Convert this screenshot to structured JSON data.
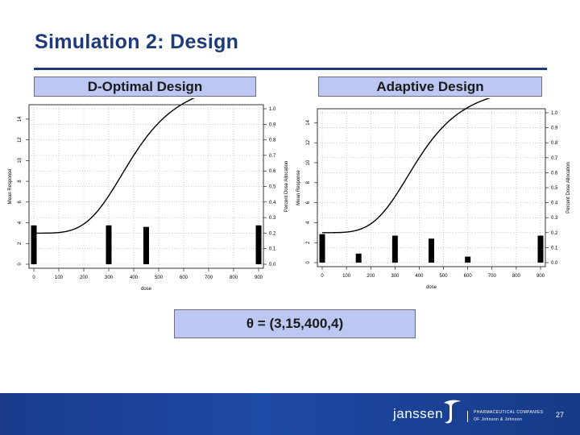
{
  "slide": {
    "title": "Simulation 2: Design",
    "param_text": "θ = (3,15,400,4)",
    "footer": {
      "logo_text": "janssen",
      "tagline_1": "PHARMACEUTICAL COMPANIES",
      "tagline_2": "OF Johnson & Johnson",
      "page_number": "27"
    }
  },
  "colors": {
    "title": "#1f3a7a",
    "box_fill": "#bcc8f2",
    "footer": "#1d4aa6",
    "bar": "#000000",
    "curve": "#000000"
  },
  "chart_data": [
    {
      "type": "bar+line",
      "title": "D-Optimal Design",
      "xlabel": "dose",
      "ylabel_left": "Mean Response",
      "ylabel_right": "Percent Dose Allocation",
      "xlim": [
        0,
        900
      ],
      "x_ticks": [
        0,
        100,
        200,
        300,
        400,
        500,
        600,
        700,
        800,
        900
      ],
      "ylim_left": [
        0,
        15
      ],
      "y_ticks_left": [
        0,
        2,
        4,
        6,
        8,
        10,
        12,
        14
      ],
      "ylim_right": [
        0,
        1
      ],
      "y_ticks_right": [
        "0.0",
        "0.1",
        "0.2",
        "0.3",
        "0.4",
        "0.5",
        "0.6",
        "0.7",
        "0.8",
        "0.9",
        "1.0"
      ],
      "grid": true,
      "curve": {
        "e0": 3,
        "emax": 15,
        "ed50": 400,
        "hill": 4
      },
      "bars": [
        {
          "dose": 0,
          "allocation": 0.25
        },
        {
          "dose": 300,
          "allocation": 0.25
        },
        {
          "dose": 450,
          "allocation": 0.24
        },
        {
          "dose": 900,
          "allocation": 0.25
        }
      ]
    },
    {
      "type": "bar+line",
      "title": "Adaptive Design",
      "xlabel": "dose",
      "ylabel_left": "Mean Response",
      "ylabel_right": "Percent Dose Allocation",
      "xlim": [
        0,
        900
      ],
      "x_ticks": [
        0,
        100,
        200,
        300,
        400,
        500,
        600,
        700,
        800,
        900
      ],
      "ylim_left": [
        0,
        15
      ],
      "y_ticks_left": [
        0,
        2,
        4,
        6,
        8,
        10,
        12,
        14
      ],
      "ylim_right": [
        0,
        1
      ],
      "y_ticks_right": [
        "0.0",
        "0.1",
        "0.2",
        "0.3",
        "0.4",
        "0.5",
        "0.6",
        "0.7",
        "0.8",
        "0.9",
        "1.0"
      ],
      "grid": true,
      "curve": {
        "e0": 3,
        "emax": 15,
        "ed50": 400,
        "hill": 4
      },
      "bars": [
        {
          "dose": 0,
          "allocation": 0.19
        },
        {
          "dose": 150,
          "allocation": 0.06
        },
        {
          "dose": 300,
          "allocation": 0.18
        },
        {
          "dose": 450,
          "allocation": 0.16
        },
        {
          "dose": 600,
          "allocation": 0.04
        },
        {
          "dose": 900,
          "allocation": 0.18
        }
      ]
    }
  ]
}
